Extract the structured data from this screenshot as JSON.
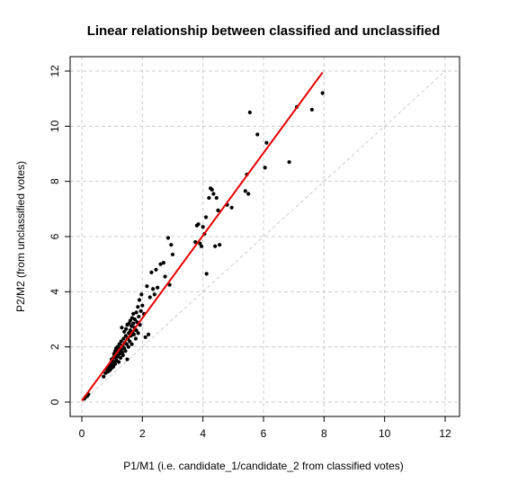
{
  "chart_data": {
    "type": "scatter",
    "title": "Linear relationship between classified and unclassified",
    "xlabel": "P1/M1 (i.e. candidate_1/candidate_2   from classified votes)",
    "ylabel": "P2/M2 (from unclassified votes)",
    "xlim": [
      0,
      12
    ],
    "ylim": [
      0,
      12
    ],
    "x_ticks": [
      0,
      2,
      4,
      6,
      8,
      10,
      12
    ],
    "y_ticks": [
      0,
      2,
      4,
      6,
      8,
      10,
      12
    ],
    "grid": true,
    "colors": {
      "points": "#000000",
      "fit_line": "#e60000",
      "identity_line": "#cccccc",
      "grid": "#cccccc"
    },
    "fit_line": {
      "x": [
        0,
        7.95
      ],
      "y": [
        0.05,
        11.95
      ]
    },
    "identity_line": {
      "x": [
        0,
        12
      ],
      "y": [
        0,
        12
      ]
    },
    "points": [
      [
        0.08,
        0.12
      ],
      [
        0.12,
        0.18
      ],
      [
        0.18,
        0.22
      ],
      [
        0.22,
        0.28
      ],
      [
        0.72,
        0.92
      ],
      [
        0.78,
        1.05
      ],
      [
        0.82,
        1.18
      ],
      [
        0.86,
        1.1
      ],
      [
        0.88,
        1.25
      ],
      [
        0.9,
        1.3
      ],
      [
        0.92,
        1.15
      ],
      [
        0.95,
        1.4
      ],
      [
        0.97,
        1.22
      ],
      [
        0.98,
        1.55
      ],
      [
        1.0,
        1.35
      ],
      [
        1.02,
        1.5
      ],
      [
        1.04,
        1.28
      ],
      [
        1.05,
        1.62
      ],
      [
        1.06,
        1.75
      ],
      [
        1.08,
        1.45
      ],
      [
        1.1,
        1.38
      ],
      [
        1.1,
        1.85
      ],
      [
        1.12,
        1.6
      ],
      [
        1.13,
        1.95
      ],
      [
        1.15,
        1.5
      ],
      [
        1.16,
        1.7
      ],
      [
        1.18,
        2.0
      ],
      [
        1.2,
        1.65
      ],
      [
        1.21,
        1.85
      ],
      [
        1.22,
        1.45
      ],
      [
        1.24,
        2.1
      ],
      [
        1.25,
        1.75
      ],
      [
        1.26,
        1.95
      ],
      [
        1.28,
        1.6
      ],
      [
        1.3,
        2.2
      ],
      [
        1.3,
        1.9
      ],
      [
        1.32,
        2.7
      ],
      [
        1.33,
        1.8
      ],
      [
        1.35,
        2.05
      ],
      [
        1.36,
        1.7
      ],
      [
        1.38,
        2.3
      ],
      [
        1.4,
        1.95
      ],
      [
        1.4,
        2.55
      ],
      [
        1.42,
        2.15
      ],
      [
        1.44,
        1.85
      ],
      [
        1.45,
        2.4
      ],
      [
        1.46,
        2.65
      ],
      [
        1.48,
        2.1
      ],
      [
        1.5,
        2.8
      ],
      [
        1.5,
        1.55
      ],
      [
        1.52,
        2.3
      ],
      [
        1.54,
        2.0
      ],
      [
        1.55,
        2.5
      ],
      [
        1.56,
        2.85
      ],
      [
        1.58,
        2.2
      ],
      [
        1.6,
        2.6
      ],
      [
        1.6,
        2.95
      ],
      [
        1.62,
        2.4
      ],
      [
        1.64,
        2.75
      ],
      [
        1.65,
        2.1
      ],
      [
        1.66,
        3.05
      ],
      [
        1.68,
        2.55
      ],
      [
        1.7,
        2.85
      ],
      [
        1.7,
        3.2
      ],
      [
        1.72,
        2.45
      ],
      [
        1.74,
        2.7
      ],
      [
        1.75,
        3.0
      ],
      [
        1.78,
        2.3
      ],
      [
        1.8,
        2.6
      ],
      [
        1.8,
        3.25
      ],
      [
        1.82,
        2.9
      ],
      [
        1.85,
        3.45
      ],
      [
        1.86,
        2.5
      ],
      [
        1.88,
        3.1
      ],
      [
        1.9,
        3.7
      ],
      [
        1.92,
        2.8
      ],
      [
        1.95,
        3.3
      ],
      [
        1.97,
        3.9
      ],
      [
        2.0,
        3.5
      ],
      [
        2.05,
        3.2
      ],
      [
        2.1,
        2.35
      ],
      [
        2.15,
        4.2
      ],
      [
        2.2,
        2.45
      ],
      [
        2.25,
        3.8
      ],
      [
        2.3,
        4.7
      ],
      [
        2.35,
        4.1
      ],
      [
        2.4,
        3.9
      ],
      [
        2.45,
        4.8
      ],
      [
        2.5,
        4.15
      ],
      [
        2.6,
        5.0
      ],
      [
        2.7,
        5.05
      ],
      [
        2.75,
        4.55
      ],
      [
        2.85,
        5.95
      ],
      [
        2.9,
        4.25
      ],
      [
        2.95,
        5.7
      ],
      [
        3.0,
        5.35
      ],
      [
        3.75,
        5.8
      ],
      [
        3.8,
        6.4
      ],
      [
        3.85,
        6.45
      ],
      [
        3.9,
        5.75
      ],
      [
        3.95,
        5.65
      ],
      [
        4.0,
        6.35
      ],
      [
        4.05,
        6.1
      ],
      [
        4.1,
        6.7
      ],
      [
        4.12,
        4.65
      ],
      [
        4.2,
        7.4
      ],
      [
        4.25,
        7.75
      ],
      [
        4.3,
        7.7
      ],
      [
        4.35,
        7.55
      ],
      [
        4.4,
        5.65
      ],
      [
        4.45,
        7.4
      ],
      [
        4.5,
        6.95
      ],
      [
        4.55,
        5.7
      ],
      [
        4.8,
        7.15
      ],
      [
        4.95,
        7.05
      ],
      [
        5.4,
        7.65
      ],
      [
        5.45,
        8.25
      ],
      [
        5.5,
        7.55
      ],
      [
        5.55,
        10.5
      ],
      [
        5.8,
        9.7
      ],
      [
        6.05,
        8.5
      ],
      [
        6.1,
        9.4
      ],
      [
        6.85,
        8.7
      ],
      [
        7.1,
        10.7
      ],
      [
        7.6,
        10.6
      ],
      [
        7.95,
        11.2
      ]
    ]
  }
}
